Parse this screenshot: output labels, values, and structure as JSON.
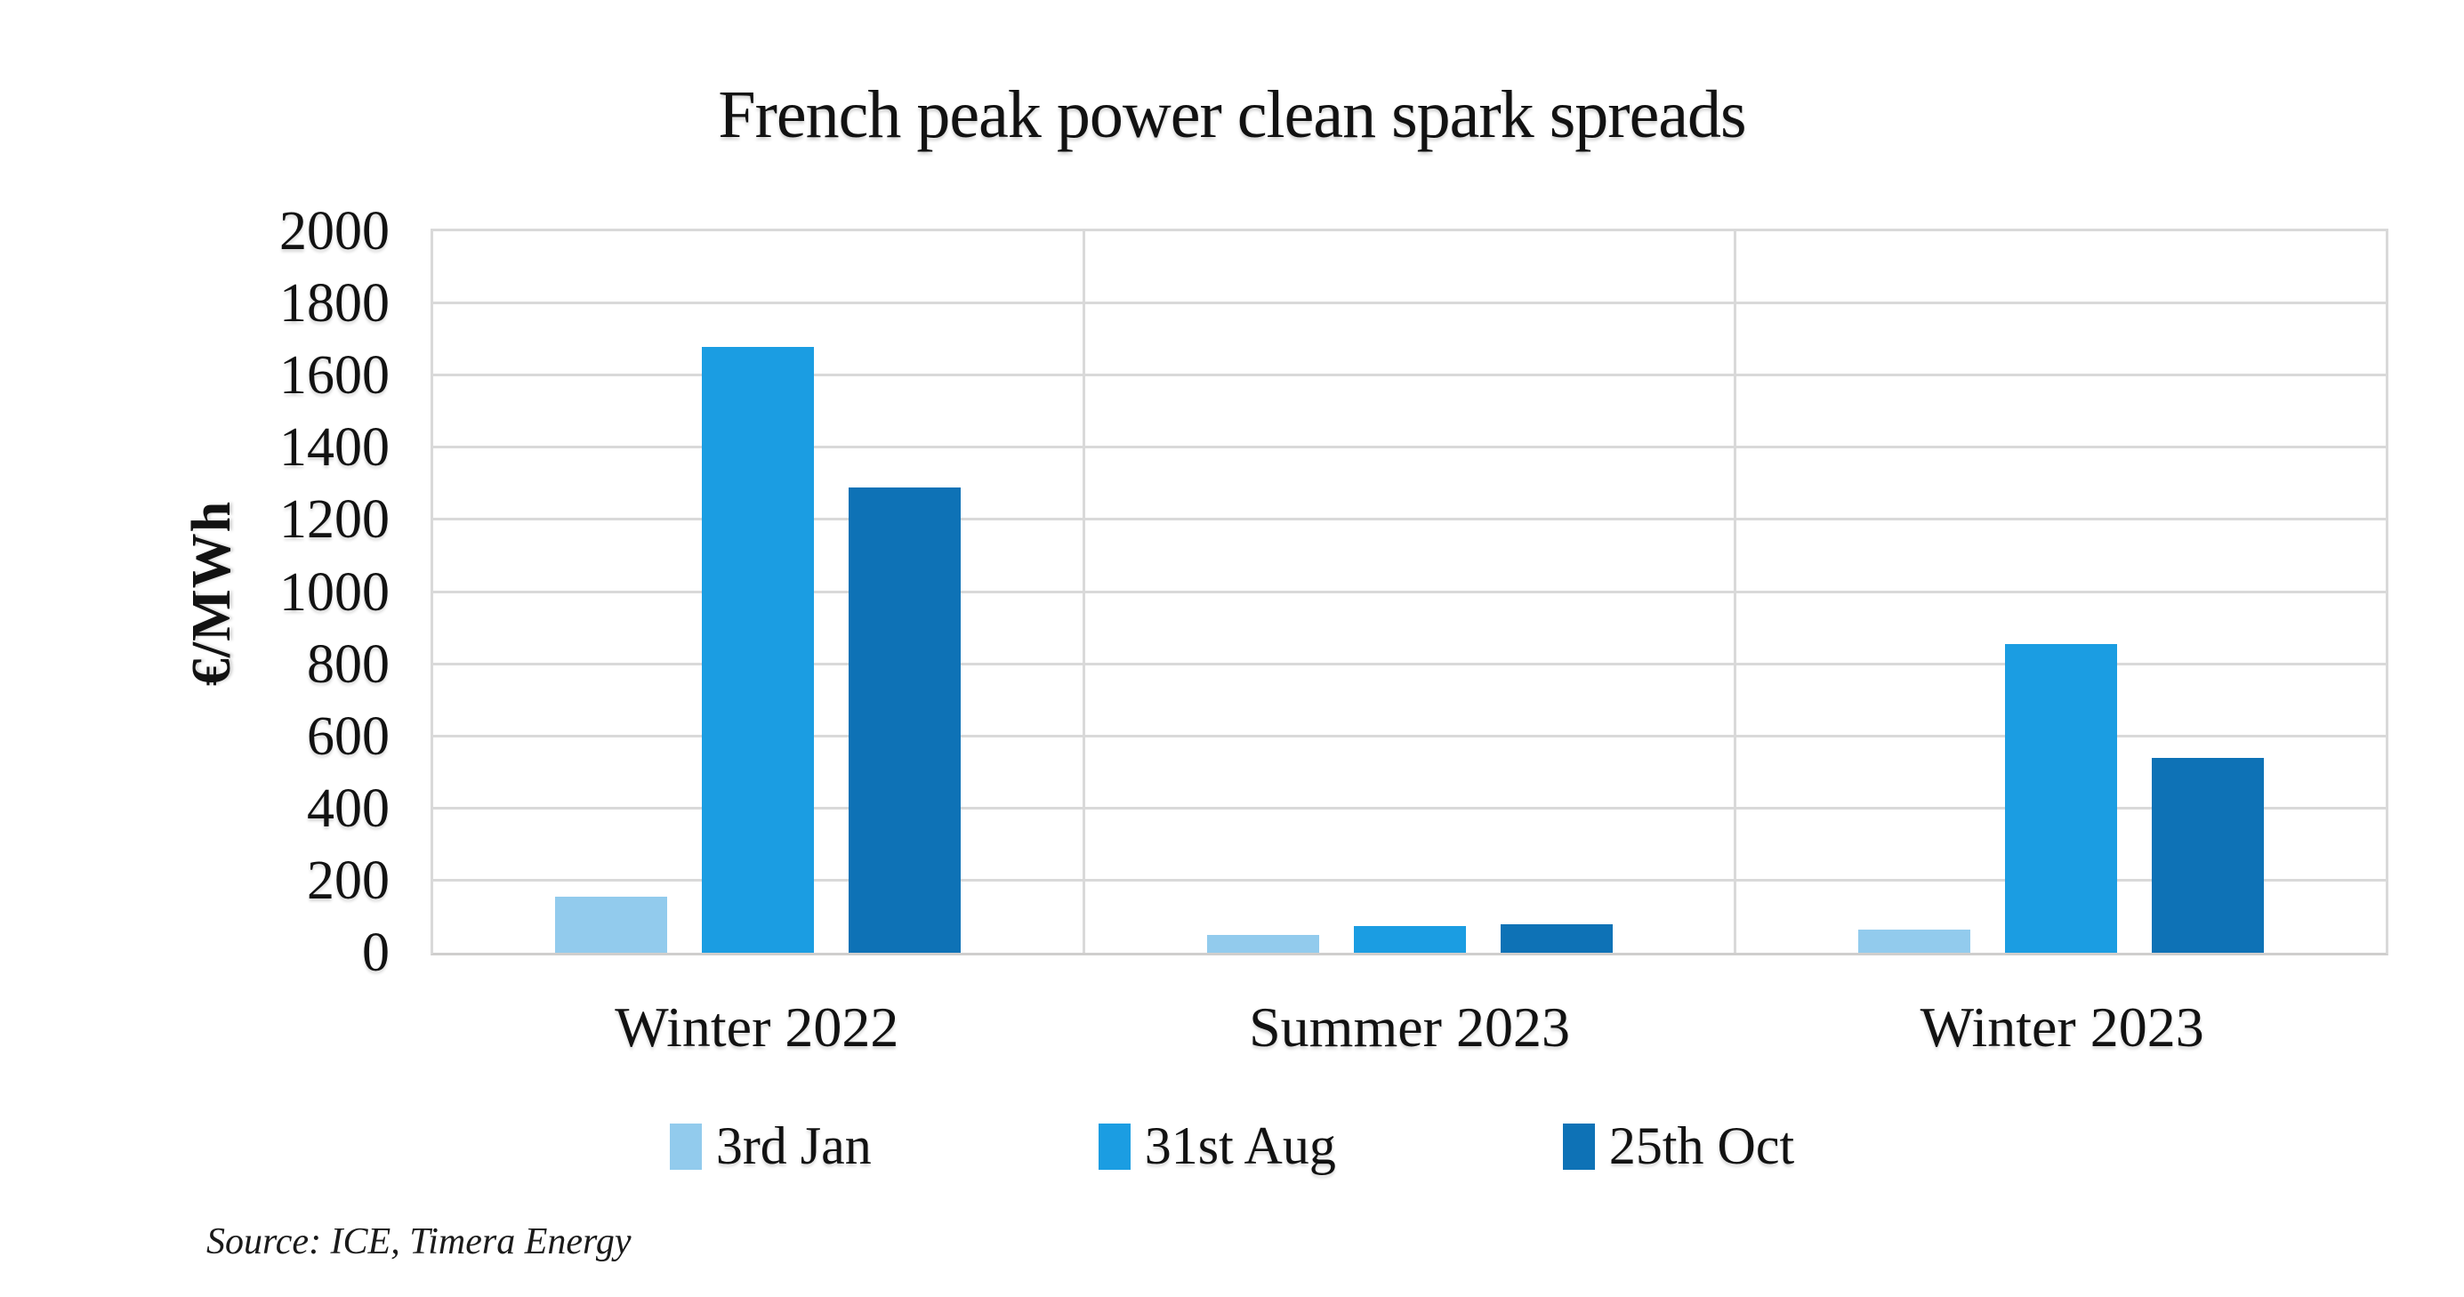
{
  "title": "French peak power clean spark spreads",
  "source": "Source: ICE, Timera Energy",
  "chart_data": {
    "type": "bar",
    "title": "French peak power clean spark spreads",
    "xlabel": "",
    "ylabel": "€/MWh",
    "categories": [
      "Winter 2022",
      "Summer 2023",
      "Winter 2023"
    ],
    "series": [
      {
        "name": "3rd Jan",
        "color": "#92CBED",
        "values": [
          155,
          50,
          65
        ]
      },
      {
        "name": "31st Aug",
        "color": "#1B9DE2",
        "values": [
          1680,
          75,
          855
        ]
      },
      {
        "name": "25th Oct",
        "color": "#0E72B6",
        "values": [
          1290,
          80,
          540
        ]
      }
    ],
    "ylim": [
      0,
      2000
    ],
    "ytick_step": 200,
    "grid": true,
    "gridline_color": "#D9D9D9",
    "axis_line_color": "#CFCECD",
    "legend_position": "bottom"
  }
}
